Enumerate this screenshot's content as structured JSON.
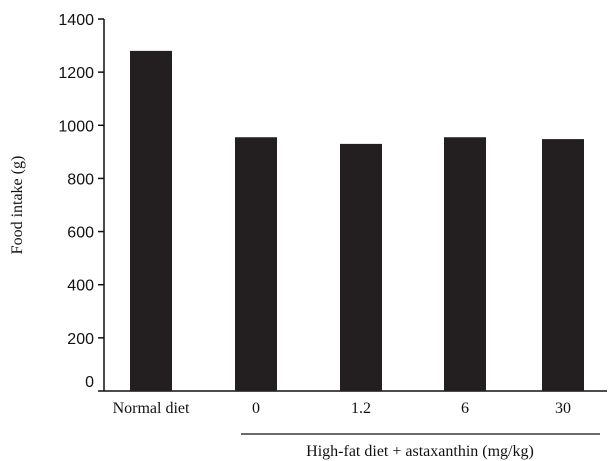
{
  "chart_data": {
    "type": "bar",
    "categories": [
      "Normal diet",
      "0",
      "1.2",
      "6",
      "30"
    ],
    "values": [
      1280,
      955,
      930,
      955,
      948
    ],
    "ylabel": "Food intake (g)",
    "xlabel": "",
    "ylim": [
      0,
      1400
    ],
    "yticks": [
      "0",
      "200",
      "400",
      "600",
      "800",
      "1000",
      "1200",
      "1400"
    ],
    "group_label": "High-fat diet + astaxanthin (mg/kg)",
    "grid": false,
    "bar_color": "#231f20"
  }
}
